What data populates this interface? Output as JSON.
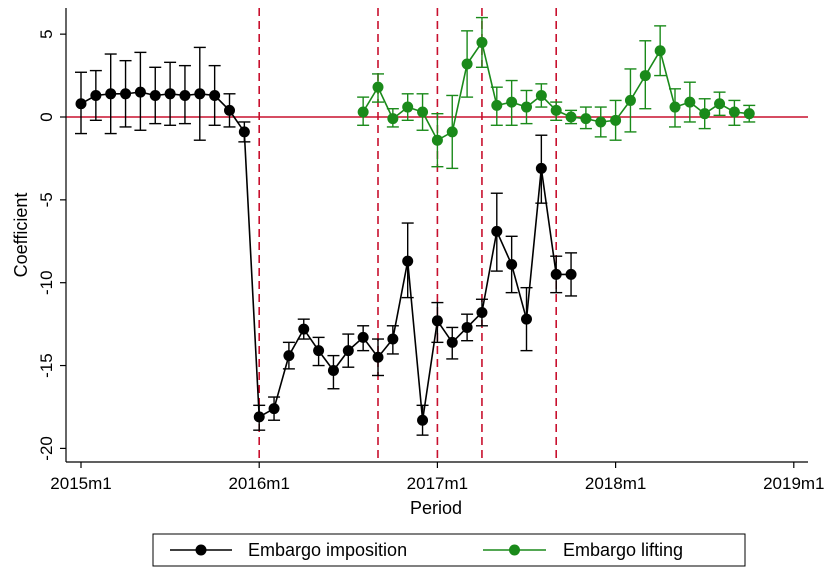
{
  "chart_data": {
    "type": "line",
    "xlabel": "Period",
    "ylabel": "Coefficient",
    "xlim": [
      660,
      709
    ],
    "ylim": [
      -20,
      6
    ],
    "x_ticks": [
      {
        "value": 660,
        "label": "2015m1"
      },
      {
        "value": 672,
        "label": "2016m1"
      },
      {
        "value": 684,
        "label": "2017m1"
      },
      {
        "value": 696,
        "label": "2018m1"
      },
      {
        "value": 708,
        "label": "2019m1"
      }
    ],
    "y_ticks": [
      {
        "value": 5,
        "label": "5"
      },
      {
        "value": 0,
        "label": "0"
      },
      {
        "value": -5,
        "label": "-5"
      },
      {
        "value": -10,
        "label": "-10"
      },
      {
        "value": -15,
        "label": "-15"
      },
      {
        "value": -20,
        "label": "-20"
      }
    ],
    "reference_line": {
      "y": 0,
      "color": "#c8102e"
    },
    "vertical_lines": {
      "x": [
        672,
        680,
        684,
        687,
        692
      ],
      "color": "#c8102e",
      "style": "dashed"
    },
    "legend_position": "bottom",
    "series": [
      {
        "name": "Embargo imposition",
        "color": "#000000",
        "points": [
          {
            "x": 660,
            "y": 0.8,
            "lo": -1.0,
            "hi": 2.7
          },
          {
            "x": 661,
            "y": 1.3,
            "lo": -0.2,
            "hi": 2.8
          },
          {
            "x": 662,
            "y": 1.4,
            "lo": -1.0,
            "hi": 3.8
          },
          {
            "x": 663,
            "y": 1.4,
            "lo": -0.6,
            "hi": 3.4
          },
          {
            "x": 664,
            "y": 1.5,
            "lo": -0.8,
            "hi": 3.9
          },
          {
            "x": 665,
            "y": 1.3,
            "lo": -0.4,
            "hi": 3.0
          },
          {
            "x": 666,
            "y": 1.4,
            "lo": -0.5,
            "hi": 3.3
          },
          {
            "x": 667,
            "y": 1.3,
            "lo": -0.4,
            "hi": 3.1
          },
          {
            "x": 668,
            "y": 1.4,
            "lo": -1.4,
            "hi": 4.2
          },
          {
            "x": 669,
            "y": 1.3,
            "lo": -0.5,
            "hi": 3.1
          },
          {
            "x": 670,
            "y": 0.4,
            "lo": -0.6,
            "hi": 1.4
          },
          {
            "x": 671,
            "y": -0.9,
            "lo": -1.5,
            "hi": -0.3
          },
          {
            "x": 672,
            "y": -18.1,
            "lo": -18.9,
            "hi": -17.4
          },
          {
            "x": 673,
            "y": -17.6,
            "lo": -18.3,
            "hi": -16.9
          },
          {
            "x": 674,
            "y": -14.4,
            "lo": -15.2,
            "hi": -13.6
          },
          {
            "x": 675,
            "y": -12.8,
            "lo": -13.4,
            "hi": -12.2
          },
          {
            "x": 676,
            "y": -14.1,
            "lo": -15.0,
            "hi": -13.3
          },
          {
            "x": 677,
            "y": -15.3,
            "lo": -16.4,
            "hi": -14.4
          },
          {
            "x": 678,
            "y": -14.1,
            "lo": -15.1,
            "hi": -13.1
          },
          {
            "x": 679,
            "y": -13.3,
            "lo": -14.1,
            "hi": -12.6
          },
          {
            "x": 680,
            "y": -14.5,
            "lo": -15.6,
            "hi": -13.4
          },
          {
            "x": 681,
            "y": -13.4,
            "lo": -14.3,
            "hi": -12.6
          },
          {
            "x": 682,
            "y": -8.7,
            "lo": -10.9,
            "hi": -6.4
          },
          {
            "x": 683,
            "y": -18.3,
            "lo": -19.2,
            "hi": -17.4
          },
          {
            "x": 684,
            "y": -12.3,
            "lo": -13.6,
            "hi": -11.2
          },
          {
            "x": 685,
            "y": -13.6,
            "lo": -14.6,
            "hi": -12.7
          },
          {
            "x": 686,
            "y": -12.7,
            "lo": -13.5,
            "hi": -11.9
          },
          {
            "x": 687,
            "y": -11.8,
            "lo": -12.6,
            "hi": -11.0
          },
          {
            "x": 688,
            "y": -6.9,
            "lo": -9.3,
            "hi": -4.6
          },
          {
            "x": 689,
            "y": -8.9,
            "lo": -10.6,
            "hi": -7.2
          },
          {
            "x": 690,
            "y": -12.2,
            "lo": -14.1,
            "hi": -10.3
          },
          {
            "x": 691,
            "y": -3.1,
            "lo": -5.2,
            "hi": -1.1
          },
          {
            "x": 692,
            "y": -9.5,
            "lo": -10.6,
            "hi": -8.4
          },
          {
            "x": 693,
            "y": -9.5,
            "lo": -10.8,
            "hi": -8.2
          }
        ]
      },
      {
        "name": "Embargo lifting",
        "color": "#1a8a1a",
        "points": [
          {
            "x": 679,
            "y": 0.3,
            "lo": -0.5,
            "hi": 1.2
          },
          {
            "x": 680,
            "y": 1.8,
            "lo": 0.9,
            "hi": 2.6
          },
          {
            "x": 681,
            "y": -0.1,
            "lo": -0.6,
            "hi": 0.5
          },
          {
            "x": 682,
            "y": 0.6,
            "lo": -0.2,
            "hi": 1.4
          },
          {
            "x": 683,
            "y": 0.3,
            "lo": -0.8,
            "hi": 1.4
          },
          {
            "x": 684,
            "y": -1.4,
            "lo": -3.0,
            "hi": 0.2
          },
          {
            "x": 685,
            "y": -0.9,
            "lo": -3.1,
            "hi": 1.3
          },
          {
            "x": 686,
            "y": 3.2,
            "lo": 1.2,
            "hi": 5.2
          },
          {
            "x": 687,
            "y": 4.5,
            "lo": 3.0,
            "hi": 6.0
          },
          {
            "x": 688,
            "y": 0.7,
            "lo": -0.5,
            "hi": 1.8
          },
          {
            "x": 689,
            "y": 0.9,
            "lo": -0.5,
            "hi": 2.2
          },
          {
            "x": 690,
            "y": 0.6,
            "lo": -0.4,
            "hi": 1.6
          },
          {
            "x": 691,
            "y": 1.3,
            "lo": 0.6,
            "hi": 2.0
          },
          {
            "x": 692,
            "y": 0.4,
            "lo": -0.2,
            "hi": 0.9
          },
          {
            "x": 693,
            "y": 0.0,
            "lo": -0.4,
            "hi": 0.4
          },
          {
            "x": 694,
            "y": -0.1,
            "lo": -0.7,
            "hi": 0.6
          },
          {
            "x": 695,
            "y": -0.3,
            "lo": -1.2,
            "hi": 0.6
          },
          {
            "x": 696,
            "y": -0.2,
            "lo": -1.4,
            "hi": 1.0
          },
          {
            "x": 697,
            "y": 1.0,
            "lo": -0.9,
            "hi": 2.9
          },
          {
            "x": 698,
            "y": 2.5,
            "lo": 0.5,
            "hi": 4.6
          },
          {
            "x": 699,
            "y": 4.0,
            "lo": 2.5,
            "hi": 5.5
          },
          {
            "x": 700,
            "y": 0.6,
            "lo": -0.6,
            "hi": 1.7
          },
          {
            "x": 701,
            "y": 0.9,
            "lo": -0.3,
            "hi": 2.1
          },
          {
            "x": 702,
            "y": 0.2,
            "lo": -0.7,
            "hi": 1.1
          },
          {
            "x": 703,
            "y": 0.8,
            "lo": 0.1,
            "hi": 1.5
          },
          {
            "x": 704,
            "y": 0.3,
            "lo": -0.5,
            "hi": 1.0
          },
          {
            "x": 705,
            "y": 0.2,
            "lo": -0.3,
            "hi": 0.7
          }
        ]
      }
    ]
  }
}
